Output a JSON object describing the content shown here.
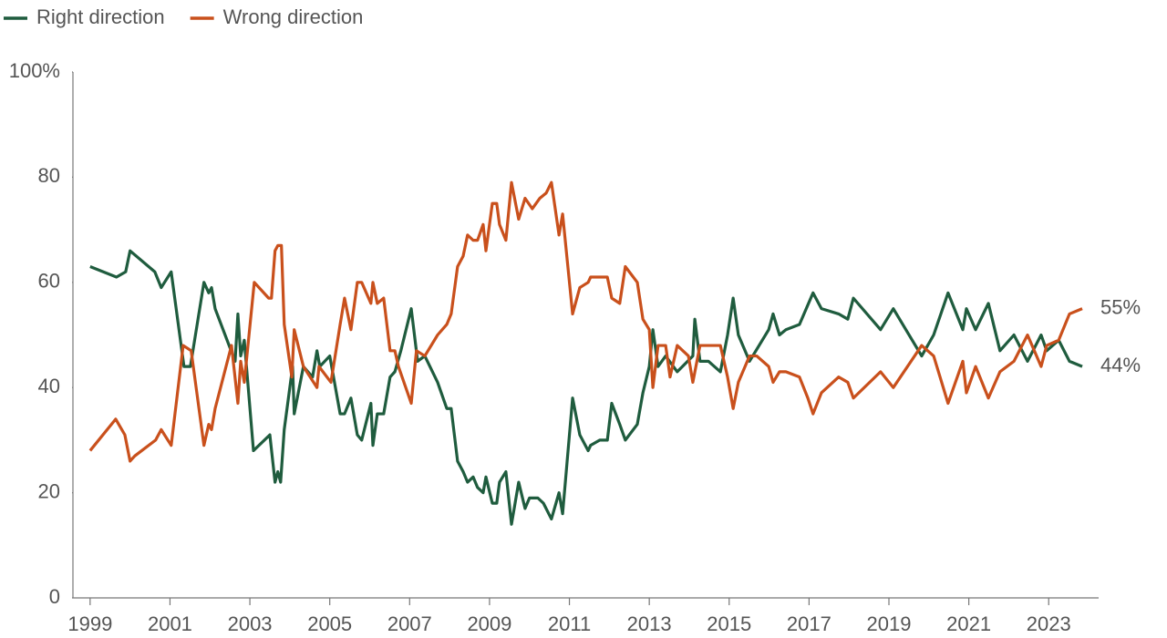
{
  "chart_data": {
    "type": "line",
    "xlim": [
      1998.57,
      2024.25
    ],
    "xticks": [
      1999,
      2001,
      2003,
      2005,
      2007,
      2009,
      2011,
      2013,
      2015,
      2017,
      2019,
      2021,
      2023
    ],
    "ylim": [
      0,
      100
    ],
    "yticks": [
      0,
      20,
      40,
      60,
      80,
      {
        "value": 100,
        "label": "100%"
      }
    ],
    "grid": false,
    "legend": "top-left",
    "series": [
      {
        "name": "Right direction",
        "color": "#1f5c3e",
        "end_label": "44%",
        "x": [
          1999.0,
          1999.66,
          1999.89,
          2000.0,
          2000.62,
          2000.78,
          2001.03,
          2001.35,
          2001.51,
          2001.85,
          2001.97,
          2002.04,
          2002.13,
          2002.63,
          2002.7,
          2002.77,
          2002.86,
          2003.09,
          2003.5,
          2003.63,
          2003.7,
          2003.77,
          2003.86,
          2004.07,
          2004.11,
          2004.34,
          2004.57,
          2004.68,
          2004.75,
          2005.0,
          2005.26,
          2005.37,
          2005.53,
          2005.69,
          2005.8,
          2006.03,
          2006.08,
          2006.19,
          2006.35,
          2006.51,
          2006.63,
          2006.78,
          2007.04,
          2007.2,
          2007.38,
          2007.7,
          2007.93,
          2008.04,
          2008.2,
          2008.34,
          2008.45,
          2008.59,
          2008.7,
          2008.84,
          2008.91,
          2009.07,
          2009.18,
          2009.25,
          2009.41,
          2009.55,
          2009.73,
          2009.89,
          2010.0,
          2010.21,
          2010.35,
          2010.55,
          2010.74,
          2010.83,
          2011.08,
          2011.26,
          2011.47,
          2011.53,
          2011.76,
          2011.95,
          2012.06,
          2012.26,
          2012.4,
          2012.7,
          2012.84,
          2013.0,
          2013.09,
          2013.22,
          2013.41,
          2013.7,
          2014.09,
          2014.14,
          2014.27,
          2014.48,
          2014.78,
          2014.96,
          2015.1,
          2015.23,
          2015.51,
          2015.99,
          2016.1,
          2016.26,
          2016.42,
          2016.76,
          2017.1,
          2017.31,
          2017.74,
          2017.97,
          2018.11,
          2018.79,
          2019.11,
          2019.82,
          2020.12,
          2020.48,
          2020.85,
          2020.94,
          2021.17,
          2021.49,
          2021.78,
          2022.13,
          2022.47,
          2022.81,
          2022.95,
          2023.25,
          2023.52,
          2023.84
        ],
        "values": [
          63,
          61,
          62,
          66,
          62,
          59,
          62,
          44,
          44,
          60,
          58,
          59,
          55,
          45,
          54,
          46,
          49,
          28,
          31,
          22,
          24,
          22,
          32,
          44,
          35,
          44,
          42,
          47,
          44,
          46,
          35,
          35,
          38,
          31,
          30,
          37,
          29,
          35,
          35,
          42,
          43,
          47,
          55,
          45,
          46,
          41,
          36,
          36,
          26,
          24,
          22,
          23,
          21,
          20,
          23,
          18,
          18,
          22,
          24,
          14,
          22,
          17,
          19,
          19,
          18,
          15,
          20,
          16,
          38,
          31,
          28,
          29,
          30,
          30,
          37,
          33,
          30,
          33,
          39,
          44,
          51,
          44,
          46,
          43,
          46,
          53,
          45,
          45,
          43,
          50,
          57,
          50,
          45,
          51,
          54,
          50,
          51,
          52,
          58,
          55,
          54,
          53,
          57,
          51,
          55,
          46,
          50,
          58,
          51,
          55,
          51,
          56,
          47,
          50,
          45,
          50,
          47,
          49,
          45,
          44
        ]
      },
      {
        "name": "Wrong direction",
        "color": "#c9501c",
        "end_label": "55%",
        "x": [
          1999.0,
          1999.64,
          1999.87,
          2000.0,
          2000.12,
          2000.64,
          2000.78,
          2001.03,
          2001.33,
          2001.53,
          2001.85,
          2001.97,
          2002.04,
          2002.13,
          2002.54,
          2002.7,
          2002.77,
          2002.86,
          2003.11,
          2003.47,
          2003.54,
          2003.63,
          2003.7,
          2003.79,
          2003.86,
          2004.05,
          2004.11,
          2004.34,
          2004.68,
          2004.73,
          2005.03,
          2005.26,
          2005.37,
          2005.53,
          2005.69,
          2005.8,
          2006.03,
          2006.08,
          2006.19,
          2006.35,
          2006.51,
          2006.63,
          2006.72,
          2007.04,
          2007.17,
          2007.38,
          2007.7,
          2007.93,
          2008.04,
          2008.2,
          2008.34,
          2008.45,
          2008.59,
          2008.7,
          2008.84,
          2008.91,
          2009.07,
          2009.18,
          2009.25,
          2009.41,
          2009.55,
          2009.73,
          2009.89,
          2010.07,
          2010.26,
          2010.42,
          2010.55,
          2010.74,
          2010.83,
          2011.08,
          2011.26,
          2011.47,
          2011.53,
          2011.76,
          2011.95,
          2012.06,
          2012.26,
          2012.4,
          2012.7,
          2012.84,
          2013.0,
          2013.09,
          2013.22,
          2013.41,
          2013.52,
          2013.7,
          2013.98,
          2014.09,
          2014.27,
          2014.78,
          2014.96,
          2015.1,
          2015.23,
          2015.51,
          2015.69,
          2015.99,
          2016.1,
          2016.26,
          2016.42,
          2016.76,
          2016.97,
          2017.1,
          2017.31,
          2017.74,
          2017.97,
          2018.11,
          2018.79,
          2019.11,
          2019.82,
          2020.12,
          2020.48,
          2020.85,
          2020.94,
          2021.17,
          2021.49,
          2021.78,
          2022.13,
          2022.47,
          2022.81,
          2022.95,
          2023.25,
          2023.52,
          2023.84
        ],
        "values": [
          28,
          34,
          31,
          26,
          27,
          30,
          32,
          29,
          48,
          47,
          29,
          33,
          32,
          36,
          48,
          37,
          45,
          41,
          60,
          57,
          57,
          66,
          67,
          67,
          52,
          42,
          51,
          44,
          40,
          44,
          41,
          52,
          57,
          51,
          60,
          60,
          56,
          60,
          56,
          57,
          47,
          47,
          44,
          37,
          47,
          46,
          50,
          52,
          54,
          63,
          65,
          69,
          68,
          68,
          71,
          66,
          75,
          75,
          71,
          68,
          79,
          72,
          76,
          74,
          76,
          77,
          79,
          69,
          73,
          54,
          59,
          60,
          61,
          61,
          61,
          57,
          56,
          63,
          60,
          53,
          51,
          40,
          48,
          48,
          42,
          48,
          46,
          41,
          48,
          48,
          42,
          36,
          41,
          46,
          46,
          44,
          41,
          43,
          43,
          42,
          38,
          35,
          39,
          42,
          41,
          38,
          43,
          40,
          48,
          46,
          37,
          45,
          39,
          44,
          38,
          43,
          45,
          50,
          44,
          48,
          49,
          54,
          55
        ]
      }
    ]
  }
}
